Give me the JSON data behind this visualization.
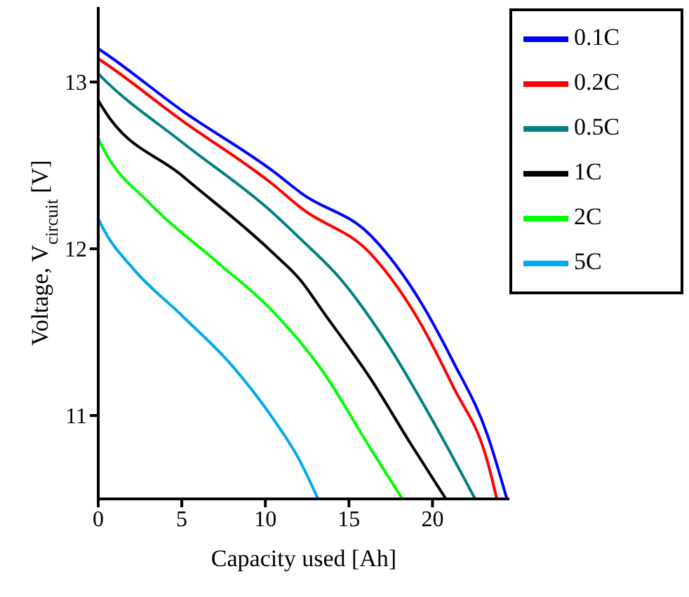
{
  "chart_data": {
    "type": "line",
    "xlabel": "Capacity used [Ah]",
    "ylabel": "Voltage, V$_{circuit}$ [V]",
    "xlim": [
      0,
      24.6
    ],
    "ylim": [
      10.5,
      13.45
    ],
    "xticks": [
      0,
      5,
      10,
      15,
      20
    ],
    "yticks": [
      11,
      12,
      13
    ],
    "grid": false,
    "legend": "top right",
    "marker": "none",
    "line_style": "solid",
    "series": [
      {
        "name": "0.1C",
        "color": "#0000ff",
        "x": [
          0,
          0.3,
          5,
          10.4,
          12.2,
          16.3,
          19.3,
          21.2,
          23.3,
          24.45
        ],
        "values": [
          13.2,
          13.18,
          12.83,
          12.47,
          12.33,
          12.08,
          11.68,
          11.33,
          10.88,
          10.5
        ]
      },
      {
        "name": "0.2C",
        "color": "#ff0000",
        "x": [
          0,
          0.3,
          5,
          10.4,
          12.2,
          16.3,
          19.3,
          21.2,
          23.3,
          23.85
        ],
        "values": [
          13.14,
          13.12,
          12.77,
          12.39,
          12.24,
          11.97,
          11.55,
          11.18,
          10.72,
          10.5
        ]
      },
      {
        "name": "0.5C",
        "color": "#008080",
        "x": [
          0,
          0.3,
          5,
          10.4,
          12.2,
          14.4,
          17.3,
          19.9,
          22.55
        ],
        "values": [
          13.05,
          13.02,
          12.64,
          12.22,
          12.05,
          11.83,
          11.43,
          10.99,
          10.5
        ]
      },
      {
        "name": "1C",
        "color": "#000000",
        "x": [
          0,
          0.3,
          5,
          10.4,
          12.2,
          13.4,
          16.3,
          18.7,
          20.8
        ],
        "values": [
          12.89,
          12.84,
          12.44,
          11.98,
          11.8,
          11.63,
          11.22,
          10.83,
          10.5
        ]
      },
      {
        "name": "2C",
        "color": "#00ff00",
        "x": [
          0,
          0.3,
          3.1,
          7,
          10.4,
          13.4,
          16.3,
          18.2
        ],
        "values": [
          12.66,
          12.6,
          12.27,
          11.93,
          11.63,
          11.27,
          10.8,
          10.5
        ]
      },
      {
        "name": "5C",
        "color": "#00aaee",
        "x": [
          0,
          0.3,
          2.1,
          5,
          8,
          10.4,
          12,
          13.15
        ],
        "values": [
          12.18,
          12.12,
          11.88,
          11.6,
          11.3,
          10.99,
          10.74,
          10.5
        ]
      }
    ]
  }
}
